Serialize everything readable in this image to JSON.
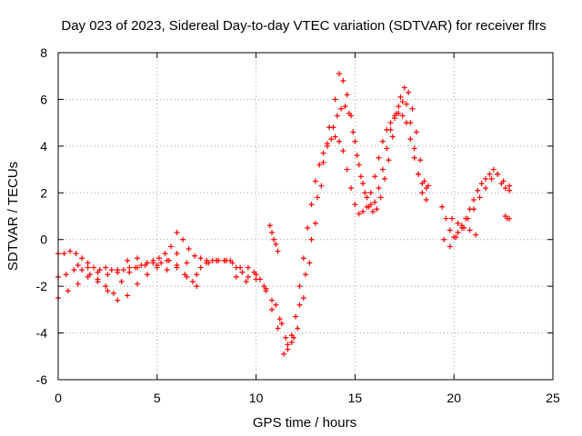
{
  "chart_data": {
    "type": "scatter",
    "title": "Day 023 of 2023, Sidereal Day-to-day VTEC variation (SDTVAR) for receiver flrs",
    "xlabel": "GPS time / hours",
    "ylabel": "SDTVAR / TECUs",
    "xlim": [
      0,
      25
    ],
    "ylim": [
      -6,
      8
    ],
    "xticks": [
      0,
      5,
      10,
      15,
      20,
      25
    ],
    "yticks": [
      -6,
      -4,
      -2,
      0,
      2,
      4,
      6,
      8
    ],
    "xtick_labels": [
      "0",
      "5",
      "10",
      "15",
      "20",
      "25"
    ],
    "ytick_labels": [
      "-6",
      "-4",
      "-2",
      "0",
      "2",
      "4",
      "6",
      "8"
    ],
    "grid": true,
    "marker": "plus",
    "color": "#ff0000",
    "series": [
      {
        "x": [
          0.0,
          0.3,
          0.6,
          0.9,
          1.2,
          1.5,
          1.8,
          2.1,
          2.4,
          2.7,
          3.0,
          3.3,
          3.6,
          3.9,
          4.2,
          4.5,
          4.8,
          5.1,
          5.4,
          5.7,
          6.0,
          6.3,
          6.6,
          6.9,
          7.2,
          7.5,
          7.8,
          8.1,
          8.4,
          8.7,
          9.0,
          9.3,
          9.6,
          9.9,
          10.2,
          10.5,
          10.8,
          11.1,
          11.4,
          11.6,
          11.8,
          12.0,
          12.2,
          12.4,
          12.6,
          12.8,
          13.0,
          13.2,
          13.4,
          13.6,
          13.8,
          14.0,
          14.2,
          14.4,
          14.6,
          14.8,
          15.0,
          15.2,
          15.4,
          15.6,
          15.8,
          16.0,
          16.2,
          16.4,
          16.6,
          16.8,
          17.0,
          17.2,
          17.4,
          17.6,
          17.8,
          18.0,
          18.2,
          18.4,
          18.6
        ],
        "y": [
          -0.6,
          -0.6,
          -0.5,
          -0.6,
          -0.8,
          -1.0,
          -1.2,
          -1.3,
          -1.2,
          -1.3,
          -1.4,
          -1.3,
          -1.2,
          -1.2,
          -1.1,
          -1.0,
          -0.9,
          -0.8,
          -0.6,
          -0.3,
          0.3,
          0.0,
          -0.4,
          -0.7,
          -0.8,
          -0.9,
          -0.9,
          -0.9,
          -0.9,
          -0.9,
          -1.6,
          -1.4,
          -1.2,
          -1.4,
          -1.7,
          -2.2,
          -3.0,
          -3.8,
          -4.9,
          -4.7,
          -4.1,
          -3.3,
          -2.0,
          -0.8,
          0.5,
          1.5,
          2.5,
          3.2,
          3.7,
          4.1,
          4.3,
          4.4,
          4.2,
          3.8,
          3.0,
          2.2,
          1.5,
          1.1,
          1.2,
          1.4,
          2.0,
          2.7,
          3.5,
          4.2,
          4.7,
          5.0,
          5.2,
          5.4,
          5.3,
          5.0,
          4.3,
          3.5,
          2.8,
          2.4,
          2.2
        ]
      },
      {
        "x": [
          0.0,
          0.4,
          0.8,
          1.2,
          1.6,
          2.0,
          2.4,
          2.8,
          3.2,
          3.6,
          4.0,
          4.4,
          4.8,
          5.2,
          5.6,
          6.0,
          6.4,
          6.8,
          7.2,
          7.6,
          8.0,
          8.4,
          8.8,
          9.2,
          9.6,
          10.0,
          10.4,
          10.8,
          11.2,
          11.5,
          11.8,
          12.1,
          12.4,
          12.7,
          13.0,
          13.3,
          13.6,
          13.9,
          14.1,
          14.3,
          14.5,
          14.7,
          14.9,
          15.1,
          15.3,
          15.5,
          15.7,
          15.9,
          16.1,
          16.3,
          16.5,
          16.7,
          16.9,
          17.1,
          17.3,
          17.5,
          17.7,
          17.9,
          18.1,
          18.3,
          18.5,
          18.7
        ],
        "y": [
          -1.6,
          -1.5,
          -1.3,
          -1.3,
          -1.5,
          -1.7,
          -2.0,
          -2.3,
          -1.8,
          -1.4,
          -1.2,
          -1.1,
          -1.0,
          -1.0,
          -0.9,
          -1.2,
          -1.5,
          -1.8,
          -1.2,
          -1.0,
          -0.9,
          -0.9,
          -1.0,
          -1.2,
          -1.6,
          -1.7,
          -2.0,
          -2.6,
          -3.4,
          -4.2,
          -4.4,
          -3.8,
          -2.5,
          -1.0,
          0.7,
          2.3,
          4.0,
          4.8,
          5.3,
          5.6,
          5.7,
          5.4,
          4.6,
          3.6,
          2.7,
          2.0,
          1.4,
          1.2,
          1.3,
          1.8,
          2.6,
          3.4,
          4.4,
          5.4,
          6.1,
          6.5,
          6.3,
          5.6,
          4.6,
          3.4,
          2.5,
          2.3
        ]
      },
      {
        "x": [
          0.0,
          0.5,
          1.0,
          1.5,
          2.0,
          2.5,
          3.0,
          3.5,
          4.0,
          4.5,
          5.0,
          5.5,
          6.0,
          6.5,
          7.0,
          7.5,
          8.0,
          8.5,
          9.0,
          9.5,
          10.0,
          10.5,
          11.0,
          11.3,
          11.6,
          11.9,
          12.2,
          12.5,
          12.8,
          13.1,
          13.4,
          13.7,
          14.0,
          14.2,
          14.4,
          14.6,
          14.8,
          15.0,
          15.2,
          15.4,
          15.6,
          15.8,
          16.0,
          16.2,
          16.4,
          16.6,
          16.8,
          17.0,
          17.2,
          17.4,
          17.6,
          17.8,
          18.0,
          18.2,
          18.4,
          18.6
        ],
        "y": [
          -2.5,
          -2.2,
          -1.9,
          -1.6,
          -1.8,
          -2.2,
          -2.6,
          -2.4,
          -1.9,
          -1.5,
          -1.1,
          -0.9,
          -0.6,
          -1.0,
          -1.5,
          -1.0,
          -0.9,
          -0.9,
          -1.2,
          -1.8,
          -1.5,
          -2.1,
          -2.8,
          -3.6,
          -4.5,
          -4.2,
          -2.8,
          -1.5,
          0.0,
          1.8,
          3.3,
          4.8,
          6.0,
          7.1,
          6.8,
          6.2,
          5.3,
          4.2,
          3.2,
          2.4,
          1.8,
          1.5,
          1.6,
          2.2,
          3.0,
          3.9,
          4.7,
          5.3,
          5.7,
          5.9,
          5.8,
          5.0,
          3.9,
          2.8,
          2.0,
          1.7
        ]
      },
      {
        "x": [
          10.7,
          10.8,
          10.9,
          11.0,
          11.1
        ],
        "y": [
          0.6,
          0.3,
          0.0,
          -0.2,
          -0.5
        ]
      },
      {
        "x": [
          19.4,
          19.6,
          19.8,
          20.0,
          20.2,
          20.4,
          20.6,
          20.8,
          21.0,
          21.2,
          21.4,
          21.6,
          21.8,
          22.0,
          22.2,
          22.4,
          22.6,
          22.8
        ],
        "y": [
          1.4,
          0.9,
          0.4,
          0.1,
          0.3,
          0.6,
          0.9,
          1.3,
          1.7,
          2.1,
          2.4,
          2.6,
          2.8,
          3.0,
          2.8,
          2.4,
          2.2,
          2.3
        ]
      },
      {
        "x": [
          19.5,
          19.8,
          20.1,
          20.4,
          20.7,
          21.0,
          21.3,
          21.6,
          21.9,
          22.2,
          22.5,
          22.8
        ],
        "y": [
          0.0,
          -0.3,
          0.1,
          0.5,
          0.9,
          1.3,
          1.8,
          2.2,
          2.6,
          2.8,
          2.5,
          2.1
        ]
      },
      {
        "x": [
          19.9,
          20.2,
          20.5,
          20.8,
          21.1,
          22.6,
          22.7,
          22.8
        ],
        "y": [
          0.9,
          0.7,
          0.5,
          0.4,
          0.2,
          1.0,
          0.9,
          0.9
        ]
      },
      {
        "x": [
          1.0,
          1.5,
          2.0,
          2.5,
          3.0,
          3.5,
          4.0,
          4.5,
          5.0,
          5.5,
          6.0,
          6.5,
          7.0
        ],
        "y": [
          -1.1,
          -1.2,
          -1.4,
          -1.5,
          -1.3,
          -0.9,
          -0.8,
          -1.0,
          -1.2,
          -1.3,
          -1.1,
          -1.6,
          -2.0
        ]
      }
    ]
  }
}
